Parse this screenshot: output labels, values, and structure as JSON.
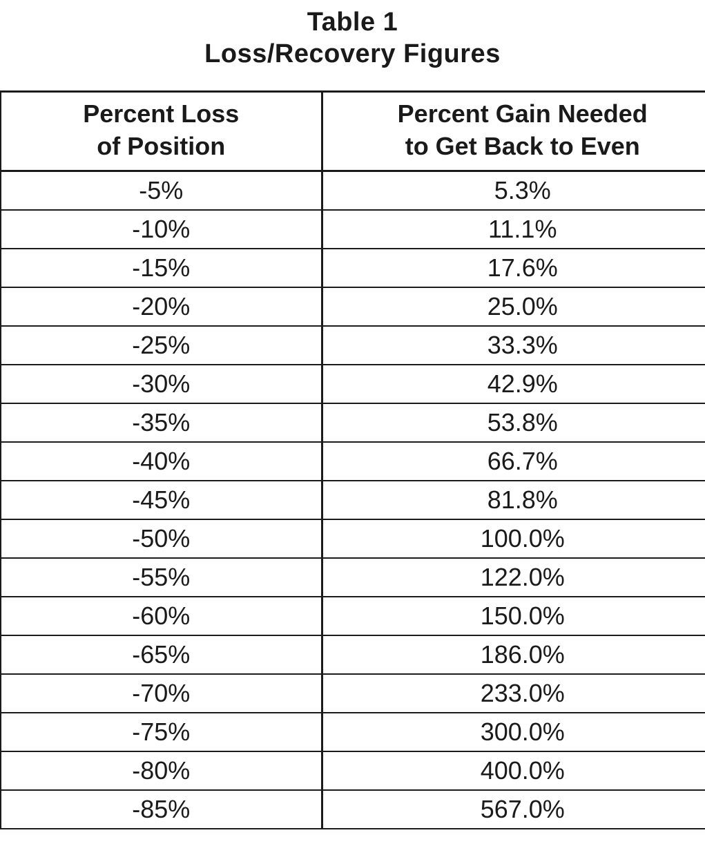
{
  "title": {
    "line1": "Table 1",
    "line2": "Loss/Recovery Figures"
  },
  "chart_data": {
    "type": "table",
    "title": "Table 1 — Loss/Recovery Figures",
    "column_headers": [
      {
        "line1": "Percent Loss",
        "line2": "of Position"
      },
      {
        "line1": "Percent Gain Needed",
        "line2": "to Get Back to Even"
      }
    ],
    "rows": [
      {
        "loss": "-5%",
        "gain": "5.3%"
      },
      {
        "loss": "-10%",
        "gain": "11.1%"
      },
      {
        "loss": "-15%",
        "gain": "17.6%"
      },
      {
        "loss": "-20%",
        "gain": "25.0%"
      },
      {
        "loss": "-25%",
        "gain": "33.3%"
      },
      {
        "loss": "-30%",
        "gain": "42.9%"
      },
      {
        "loss": "-35%",
        "gain": "53.8%"
      },
      {
        "loss": "-40%",
        "gain": "66.7%"
      },
      {
        "loss": "-45%",
        "gain": "81.8%"
      },
      {
        "loss": "-50%",
        "gain": "100.0%"
      },
      {
        "loss": "-55%",
        "gain": "122.0%"
      },
      {
        "loss": "-60%",
        "gain": "150.0%"
      },
      {
        "loss": "-65%",
        "gain": "186.0%"
      },
      {
        "loss": "-70%",
        "gain": "233.0%"
      },
      {
        "loss": "-75%",
        "gain": "300.0%"
      },
      {
        "loss": "-80%",
        "gain": "400.0%"
      },
      {
        "loss": "-85%",
        "gain": "567.0%"
      }
    ]
  },
  "colors": {
    "background": "#ffffff",
    "text": "#1a1a1a",
    "border": "#1a1a1a"
  }
}
